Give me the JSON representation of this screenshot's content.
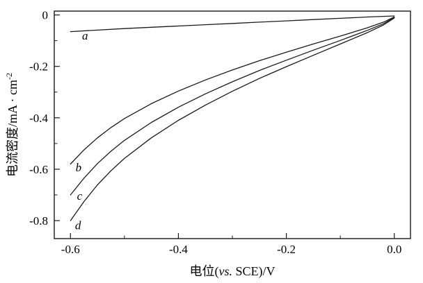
{
  "chart_data": {
    "type": "line",
    "title": "",
    "xlabel": "电位(vs. SCE)/V",
    "ylabel": "电流密度/mA·cm⁻²",
    "xlabel_parts": {
      "prefix": "电位(",
      "italic": "vs.",
      "suffix": " SCE)/V"
    },
    "ylabel_parts": {
      "main": "电流密度/mA · cm",
      "sup": "-2"
    },
    "xlim": [
      -0.63,
      0.03
    ],
    "ylim": [
      -0.87,
      0.015
    ],
    "grid": false,
    "legend": "none",
    "line_color": "#1a1a1a",
    "x_major_ticks": [
      -0.6,
      -0.4,
      -0.2,
      0.0
    ],
    "x_tick_labels": [
      "-0.6",
      "-0.4",
      "-0.2",
      "0.0"
    ],
    "x_minor_ticks": [
      -0.5,
      -0.3,
      -0.1
    ],
    "y_major_ticks": [
      0,
      -0.2,
      -0.4,
      -0.6,
      -0.8
    ],
    "y_tick_labels": [
      "0",
      "-0.2",
      "-0.4",
      "-0.6",
      "-0.8"
    ],
    "y_minor_ticks": [
      -0.1,
      -0.3,
      -0.5,
      -0.7
    ],
    "series": [
      {
        "name": "a",
        "label": {
          "text": "a",
          "x": -0.573,
          "y": -0.082
        },
        "x": [
          -0.6,
          -0.55,
          -0.5,
          -0.45,
          -0.4,
          -0.35,
          -0.3,
          -0.25,
          -0.2,
          -0.15,
          -0.1,
          -0.05,
          0.0
        ],
        "y": [
          -0.065,
          -0.059,
          -0.053,
          -0.048,
          -0.043,
          -0.038,
          -0.033,
          -0.028,
          -0.023,
          -0.018,
          -0.013,
          -0.008,
          -0.004
        ]
      },
      {
        "name": "b",
        "label": {
          "text": "b",
          "x": -0.585,
          "y": -0.595
        },
        "x": [
          -0.6,
          -0.575,
          -0.55,
          -0.525,
          -0.5,
          -0.45,
          -0.4,
          -0.35,
          -0.3,
          -0.25,
          -0.2,
          -0.15,
          -0.1,
          -0.05,
          -0.02,
          0.0
        ],
        "y": [
          -0.58,
          -0.525,
          -0.478,
          -0.438,
          -0.403,
          -0.345,
          -0.296,
          -0.253,
          -0.214,
          -0.178,
          -0.145,
          -0.113,
          -0.082,
          -0.05,
          -0.028,
          -0.008
        ]
      },
      {
        "name": "c",
        "label": {
          "text": "c",
          "x": -0.583,
          "y": -0.705
        },
        "x": [
          -0.6,
          -0.575,
          -0.55,
          -0.525,
          -0.5,
          -0.45,
          -0.4,
          -0.35,
          -0.3,
          -0.25,
          -0.2,
          -0.15,
          -0.1,
          -0.05,
          -0.02,
          0.0
        ],
        "y": [
          -0.7,
          -0.635,
          -0.578,
          -0.53,
          -0.488,
          -0.418,
          -0.359,
          -0.307,
          -0.26,
          -0.216,
          -0.176,
          -0.137,
          -0.099,
          -0.06,
          -0.034,
          -0.01
        ]
      },
      {
        "name": "d",
        "label": {
          "text": "d",
          "x": -0.586,
          "y": -0.82
        },
        "x": [
          -0.6,
          -0.575,
          -0.55,
          -0.525,
          -0.5,
          -0.45,
          -0.4,
          -0.35,
          -0.3,
          -0.25,
          -0.2,
          -0.15,
          -0.1,
          -0.05,
          -0.02,
          0.0
        ],
        "y": [
          -0.8,
          -0.726,
          -0.661,
          -0.606,
          -0.558,
          -0.478,
          -0.41,
          -0.351,
          -0.297,
          -0.247,
          -0.201,
          -0.157,
          -0.113,
          -0.069,
          -0.039,
          -0.012
        ]
      }
    ]
  }
}
